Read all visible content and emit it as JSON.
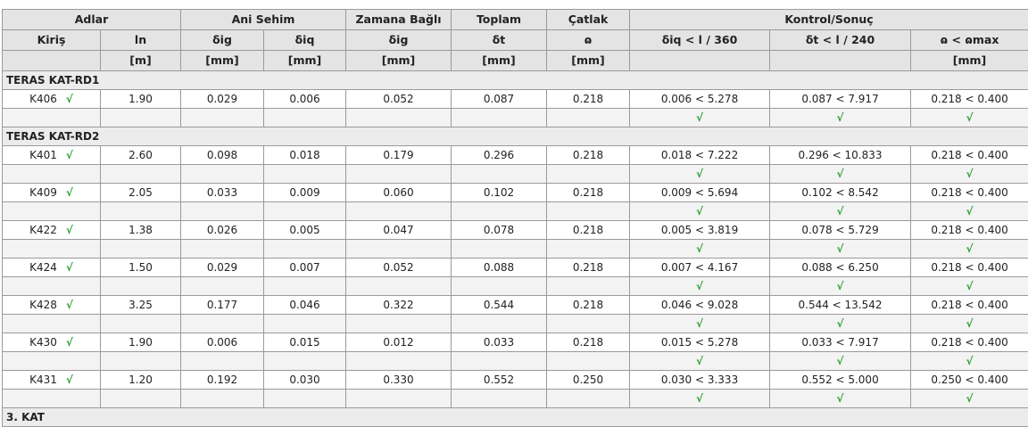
{
  "header": {
    "row1": [
      "Adlar",
      "Ani Sehim",
      "Zamana Bağlı",
      "Toplam",
      "Çatlak",
      "Kontrol/Sonuç"
    ],
    "row2": [
      "Kiriş",
      "ln",
      "δig",
      "δiq",
      "ẟig",
      "δt",
      "ɷ",
      "δiq < l / 360",
      "δt < l / 240",
      "ɷ < ɷmax"
    ],
    "units": [
      null,
      "[m]",
      "[mm]",
      "[mm]",
      "[mm]",
      "[mm]",
      "[mm]",
      null,
      null,
      "[mm]"
    ]
  },
  "groups": [
    {
      "name": "TERAS KAT-RD1",
      "beams": [
        {
          "name": "K406",
          "check": "√",
          "values": [
            "1.90",
            "0.029",
            "0.006",
            "0.052",
            "0.087",
            "0.218"
          ],
          "controls": [
            "0.006 < 5.278",
            "0.087 < 7.917",
            "0.218 < 0.400"
          ],
          "control_checks": [
            "√",
            "√",
            "√"
          ]
        }
      ]
    },
    {
      "name": "TERAS KAT-RD2",
      "beams": [
        {
          "name": "K401",
          "check": "√",
          "values": [
            "2.60",
            "0.098",
            "0.018",
            "0.179",
            "0.296",
            "0.218"
          ],
          "controls": [
            "0.018 < 7.222",
            "0.296 < 10.833",
            "0.218 < 0.400"
          ],
          "control_checks": [
            "√",
            "√",
            "√"
          ]
        },
        {
          "name": "K409",
          "check": "√",
          "values": [
            "2.05",
            "0.033",
            "0.009",
            "0.060",
            "0.102",
            "0.218"
          ],
          "controls": [
            "0.009 < 5.694",
            "0.102 < 8.542",
            "0.218 < 0.400"
          ],
          "control_checks": [
            "√",
            "√",
            "√"
          ]
        },
        {
          "name": "K422",
          "check": "√",
          "values": [
            "1.38",
            "0.026",
            "0.005",
            "0.047",
            "0.078",
            "0.218"
          ],
          "controls": [
            "0.005 < 3.819",
            "0.078 < 5.729",
            "0.218 < 0.400"
          ],
          "control_checks": [
            "√",
            "√",
            "√"
          ]
        },
        {
          "name": "K424",
          "check": "√",
          "values": [
            "1.50",
            "0.029",
            "0.007",
            "0.052",
            "0.088",
            "0.218"
          ],
          "controls": [
            "0.007 < 4.167",
            "0.088 < 6.250",
            "0.218 < 0.400"
          ],
          "control_checks": [
            "√",
            "√",
            "√"
          ]
        },
        {
          "name": "K428",
          "check": "√",
          "values": [
            "3.25",
            "0.177",
            "0.046",
            "0.322",
            "0.544",
            "0.218"
          ],
          "controls": [
            "0.046 < 9.028",
            "0.544 < 13.542",
            "0.218 < 0.400"
          ],
          "control_checks": [
            "√",
            "√",
            "√"
          ]
        },
        {
          "name": "K430",
          "check": "√",
          "values": [
            "1.90",
            "0.006",
            "0.015",
            "0.012",
            "0.033",
            "0.218"
          ],
          "controls": [
            "0.015 < 5.278",
            "0.033 < 7.917",
            "0.218 < 0.400"
          ],
          "control_checks": [
            "√",
            "√",
            "√"
          ]
        },
        {
          "name": "K431",
          "check": "√",
          "values": [
            "1.20",
            "0.192",
            "0.030",
            "0.330",
            "0.552",
            "0.250"
          ],
          "controls": [
            "0.030 < 3.333",
            "0.552 < 5.000",
            "0.250 < 0.400"
          ],
          "control_checks": [
            "√",
            "√",
            "√"
          ]
        }
      ]
    },
    {
      "name": "3. KAT",
      "beams": []
    }
  ]
}
